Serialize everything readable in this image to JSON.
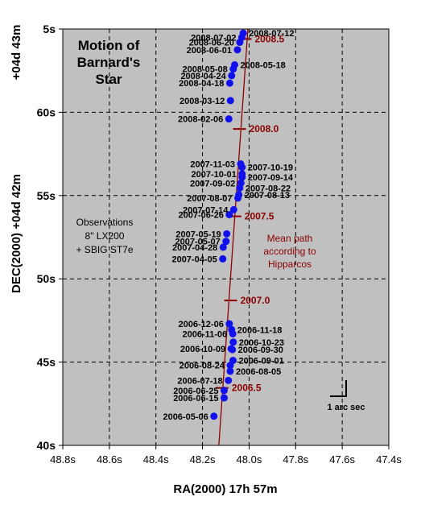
{
  "chart_data": {
    "type": "scatter",
    "title": [
      "Motion of",
      "Barnard's",
      "Star"
    ],
    "xlabel": "RA(2000) 17h 57m",
    "ylabel": "DEC(2000) +04d 42m",
    "ylabel_top": "+04d 43m",
    "x_unit": "s",
    "y_unit": "s",
    "xlim": [
      48.8,
      47.4
    ],
    "ylim": [
      40,
      65
    ],
    "x_reversed": true,
    "grid": true,
    "x_ticks": [
      {
        "value": 48.8,
        "label": "48.8s"
      },
      {
        "value": 48.6,
        "label": "48.6s"
      },
      {
        "value": 48.4,
        "label": "48.4s"
      },
      {
        "value": 48.2,
        "label": "48.2s"
      },
      {
        "value": 48.0,
        "label": "48.0s"
      },
      {
        "value": 47.8,
        "label": "47.8s"
      },
      {
        "value": 47.6,
        "label": "47.6s"
      },
      {
        "value": 47.4,
        "label": "47.4s"
      }
    ],
    "y_ticks": [
      {
        "value": 40,
        "label": "40s"
      },
      {
        "value": 45,
        "label": "45s"
      },
      {
        "value": 50,
        "label": "50s"
      },
      {
        "value": 55,
        "label": "55s"
      },
      {
        "value": 60,
        "label": "60s"
      },
      {
        "value": 65,
        "label": "5s"
      }
    ],
    "series": [
      {
        "points": [
          {
            "x": 48.151,
            "y": 41.75,
            "label": "2006-05-06",
            "side": "left"
          },
          {
            "x": 48.107,
            "y": 42.85,
            "label": "2006-06-15",
            "side": "left"
          },
          {
            "x": 48.107,
            "y": 43.3,
            "label": "2006-06-25",
            "side": "left"
          },
          {
            "x": 48.089,
            "y": 43.9,
            "label": "2006-07-18",
            "side": "left"
          },
          {
            "x": 48.081,
            "y": 44.45,
            "label": "2006-08-05",
            "side": "right"
          },
          {
            "x": 48.081,
            "y": 44.8,
            "label": "2006-08-24",
            "side": "left"
          },
          {
            "x": 48.069,
            "y": 45.1,
            "label": "2006-09-01",
            "side": "right"
          },
          {
            "x": 48.072,
            "y": 45.75,
            "label": "2006-09-30",
            "side": "right"
          },
          {
            "x": 48.077,
            "y": 45.8,
            "label": "2006-10-09",
            "side": "left"
          },
          {
            "x": 48.068,
            "y": 46.2,
            "label": "2006-10-23",
            "side": "right"
          },
          {
            "x": 48.07,
            "y": 46.7,
            "label": "2006-11-06",
            "side": "left"
          },
          {
            "x": 48.075,
            "y": 46.95,
            "label": "2006-11-18",
            "side": "right"
          },
          {
            "x": 48.085,
            "y": 47.3,
            "label": "2006-12-06",
            "side": "left"
          },
          {
            "x": 48.113,
            "y": 51.2,
            "label": "2007-04-05",
            "side": "left"
          },
          {
            "x": 48.111,
            "y": 51.9,
            "label": "2007-04-28",
            "side": "left"
          },
          {
            "x": 48.099,
            "y": 52.25,
            "label": "2007-05-07",
            "side": "left"
          },
          {
            "x": 48.096,
            "y": 52.7,
            "label": "2007-05-19",
            "side": "left"
          },
          {
            "x": 48.085,
            "y": 53.85,
            "label": "2007-06-26",
            "side": "left"
          },
          {
            "x": 48.066,
            "y": 54.15,
            "label": "2007-07-14",
            "side": "left"
          },
          {
            "x": 48.048,
            "y": 54.85,
            "label": "2007-08-07",
            "side": "left"
          },
          {
            "x": 48.044,
            "y": 55.05,
            "label": "2007-08-13",
            "side": "right"
          },
          {
            "x": 48.04,
            "y": 55.45,
            "label": "2007-08-22",
            "side": "right"
          },
          {
            "x": 48.035,
            "y": 55.75,
            "label": "2007-09-02",
            "side": "left"
          },
          {
            "x": 48.03,
            "y": 56.1,
            "label": "2007-09-14",
            "side": "right"
          },
          {
            "x": 48.03,
            "y": 56.3,
            "label": "2007-10-01",
            "side": "left"
          },
          {
            "x": 48.03,
            "y": 56.7,
            "label": "2007-10-19",
            "side": "right"
          },
          {
            "x": 48.036,
            "y": 56.9,
            "label": "2007-11-03",
            "side": "left"
          },
          {
            "x": 48.087,
            "y": 59.6,
            "label": "2008-02-06",
            "side": "left"
          },
          {
            "x": 48.08,
            "y": 60.7,
            "label": "2008-03-12",
            "side": "left"
          },
          {
            "x": 48.083,
            "y": 61.75,
            "label": "2008-04-18",
            "side": "left"
          },
          {
            "x": 48.075,
            "y": 62.2,
            "label": "2008-04-24",
            "side": "left"
          },
          {
            "x": 48.068,
            "y": 62.6,
            "label": "2008-05-08",
            "side": "left"
          },
          {
            "x": 48.062,
            "y": 62.85,
            "label": "2008-05-18",
            "side": "right"
          },
          {
            "x": 48.05,
            "y": 63.75,
            "label": "2008-06-01",
            "side": "left"
          },
          {
            "x": 48.04,
            "y": 64.2,
            "label": "2008-06-20",
            "side": "left"
          },
          {
            "x": 48.031,
            "y": 64.5,
            "label": "2008-07-02",
            "side": "left"
          },
          {
            "x": 48.025,
            "y": 64.75,
            "label": "2008-07-12",
            "side": "right"
          }
        ]
      }
    ],
    "hipparcos_path": {
      "label": [
        "Mean path",
        "according to",
        "Hipparcos"
      ],
      "start": {
        "x": 48.13,
        "y": 40.0
      },
      "end": {
        "x": 48.005,
        "y": 65.0
      },
      "epochs": [
        {
          "label": "2006.5",
          "x": 48.116,
          "y": 43.45
        },
        {
          "label": "2007.0",
          "x": 48.079,
          "y": 48.7
        },
        {
          "label": "2007.5",
          "x": 48.061,
          "y": 53.75
        },
        {
          "label": "2008.0",
          "x": 48.041,
          "y": 59.0
        },
        {
          "label": "2008.5",
          "x": 48.017,
          "y": 64.4
        }
      ]
    },
    "annotations": {
      "observations": [
        "Observations",
        "8\" LX200",
        "+ SBIG ST7e"
      ],
      "scale_bar": "1 arc sec"
    },
    "colors": {
      "plot_bg": "#c0c0c0",
      "point": "#1111ee",
      "path": "#8b0000",
      "grid": "#000000"
    }
  }
}
